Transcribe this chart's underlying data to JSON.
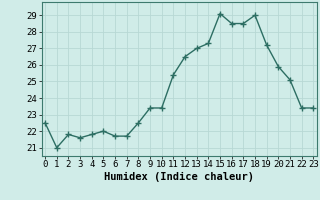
{
  "x": [
    0,
    1,
    2,
    3,
    4,
    5,
    6,
    7,
    8,
    9,
    10,
    11,
    12,
    13,
    14,
    15,
    16,
    17,
    18,
    19,
    20,
    21,
    22,
    23
  ],
  "y": [
    22.5,
    21.0,
    21.8,
    21.6,
    21.8,
    22.0,
    21.7,
    21.7,
    22.5,
    23.4,
    23.4,
    25.4,
    26.5,
    27.0,
    27.3,
    29.1,
    28.5,
    28.5,
    29.0,
    27.2,
    25.9,
    25.1,
    23.4,
    23.4
  ],
  "line_color": "#2d6e63",
  "marker": "+",
  "markersize": 4,
  "linewidth": 1.0,
  "bg_color": "#d0ece8",
  "grid_color": "#b8d8d4",
  "xlabel": "Humidex (Indice chaleur)",
  "xlabel_fontsize": 7.5,
  "tick_fontsize": 6.5,
  "ylim": [
    20.5,
    29.8
  ],
  "yticks": [
    21,
    22,
    23,
    24,
    25,
    26,
    27,
    28,
    29
  ],
  "xticks": [
    0,
    1,
    2,
    3,
    4,
    5,
    6,
    7,
    8,
    9,
    10,
    11,
    12,
    13,
    14,
    15,
    16,
    17,
    18,
    19,
    20,
    21,
    22,
    23
  ],
  "xlim": [
    -0.3,
    23.3
  ]
}
